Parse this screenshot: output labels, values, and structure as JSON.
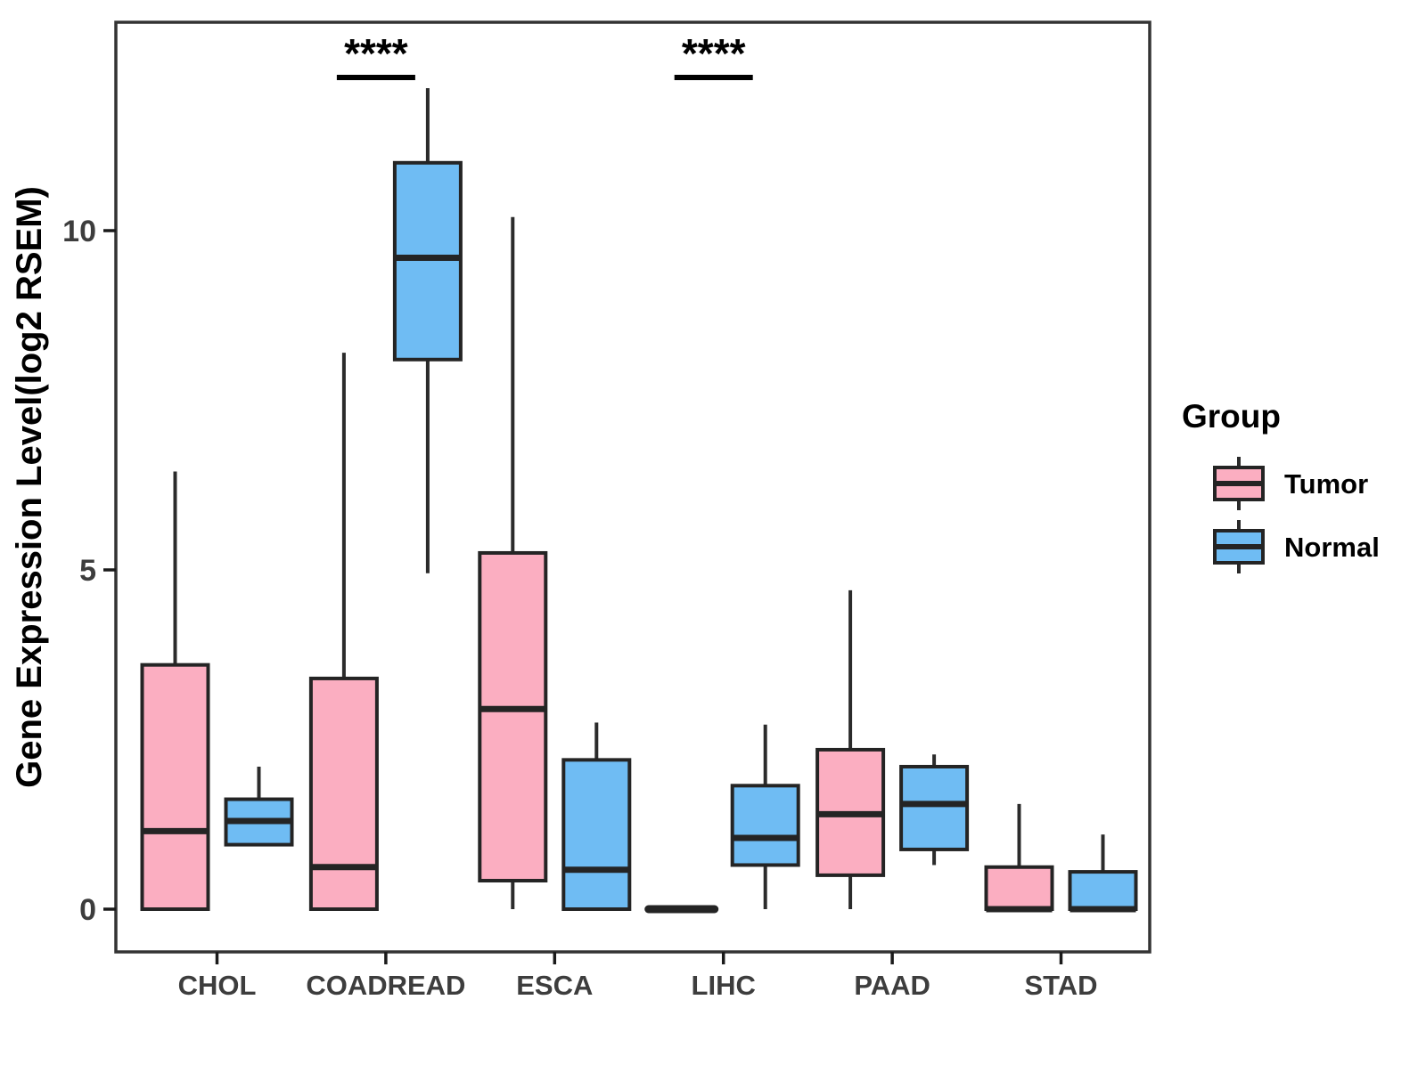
{
  "figure": {
    "background": "#ffffff"
  },
  "chart_data": {
    "type": "grouped_boxplot",
    "title": "",
    "xlabel": "",
    "ylabel": "Gene Expression Level(log2 RSEM)",
    "categories": [
      "CHOL",
      "COADREAD",
      "ESCA",
      "LIHC",
      "PAAD",
      "STAD"
    ],
    "yticks": [
      0,
      5,
      10
    ],
    "ylim": [
      -0.65,
      13.1
    ],
    "grid": false,
    "legend": {
      "title": "Group",
      "position": "right",
      "entries": [
        {
          "label": "Tumor",
          "color": "#FBAEC1"
        },
        {
          "label": "Normal",
          "color": "#6FBCF3"
        }
      ]
    },
    "series": [
      {
        "name": "Tumor",
        "color": "#FBAEC1",
        "boxes_min_q1_med_q3_max": [
          [
            0,
            0,
            1.15,
            3.6,
            6.45
          ],
          [
            0,
            0,
            0.62,
            3.4,
            8.2
          ],
          [
            0,
            0.42,
            2.95,
            5.25,
            10.2
          ],
          [
            0,
            0,
            0,
            0,
            0
          ],
          [
            0,
            0.5,
            1.4,
            2.35,
            4.7
          ],
          [
            0,
            0,
            0,
            0.62,
            1.55
          ]
        ]
      },
      {
        "name": "Normal",
        "color": "#6FBCF3",
        "boxes_min_q1_med_q3_max": [
          [
            0.95,
            0.95,
            1.3,
            1.62,
            2.1
          ],
          [
            4.95,
            8.1,
            9.6,
            11.0,
            12.1
          ],
          [
            0,
            0,
            0.58,
            2.2,
            2.75
          ],
          [
            0,
            0.65,
            1.05,
            1.82,
            2.72
          ],
          [
            0.65,
            0.88,
            1.55,
            2.1,
            2.28
          ],
          [
            0,
            0,
            0,
            0.55,
            1.1
          ]
        ]
      }
    ],
    "significance": [
      {
        "category": "COADREAD",
        "label": "****"
      },
      {
        "category": "LIHC",
        "label": "****"
      }
    ],
    "colors": {
      "box_border": "#242424",
      "median": "#242424",
      "whisker": "#2b2b2b",
      "panel_border": "#333333",
      "axis_tick": "#1a1a1a",
      "axis_text": "#3d3d3d",
      "title_text": "#000000",
      "significance_text": "#000000"
    }
  }
}
